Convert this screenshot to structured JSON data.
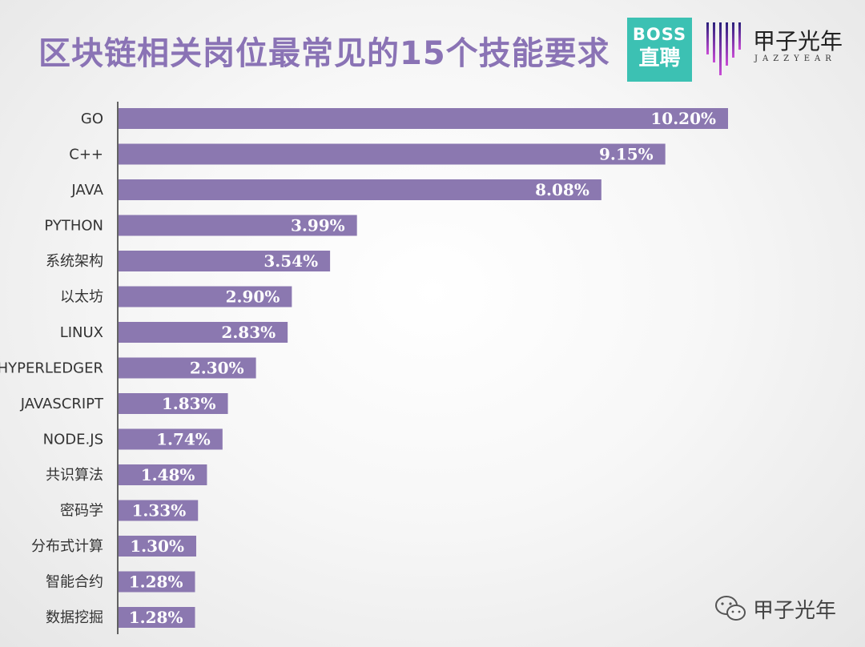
{
  "header": {
    "title": "区块链相关岗位最常见的15个技能要求"
  },
  "logos": {
    "boss": {
      "line1": "BOSS",
      "line2": "直聘",
      "color": "#3cc1b3"
    },
    "jazzyear": {
      "name": "甲子光年",
      "sub": "JAZZYEAR"
    }
  },
  "watermark": {
    "text": "甲子光年",
    "icon": "wechat-icon"
  },
  "colors": {
    "bar": "#8b78b0",
    "title": "#8a73b5",
    "axis": "#333333"
  },
  "chart_data": {
    "type": "bar",
    "orientation": "horizontal",
    "categories": [
      "GO",
      "C++",
      "JAVA",
      "PYTHON",
      "系统架构",
      "以太坊",
      "LINUX",
      "HYPERLEDGER",
      "JAVASCRIPT",
      "NODE.JS",
      "共识算法",
      "密码学",
      "分布式计算",
      "智能合约",
      "数据挖掘"
    ],
    "values": [
      10.2,
      9.15,
      8.08,
      3.99,
      3.54,
      2.9,
      2.83,
      2.3,
      1.83,
      1.74,
      1.48,
      1.33,
      1.3,
      1.28,
      1.28
    ],
    "data_labels": [
      "10.20%",
      "9.15%",
      "8.08%",
      "3.99%",
      "3.54%",
      "2.90%",
      "2.83%",
      "2.30%",
      "1.83%",
      "1.74%",
      "1.48%",
      "1.33%",
      "1.30%",
      "1.28%",
      "1.28%"
    ],
    "title": "区块链相关岗位最常见的15个技能要求",
    "xlabel": "",
    "ylabel": "",
    "xlim": [
      0,
      10.2
    ],
    "grid": false,
    "legend": "none"
  }
}
